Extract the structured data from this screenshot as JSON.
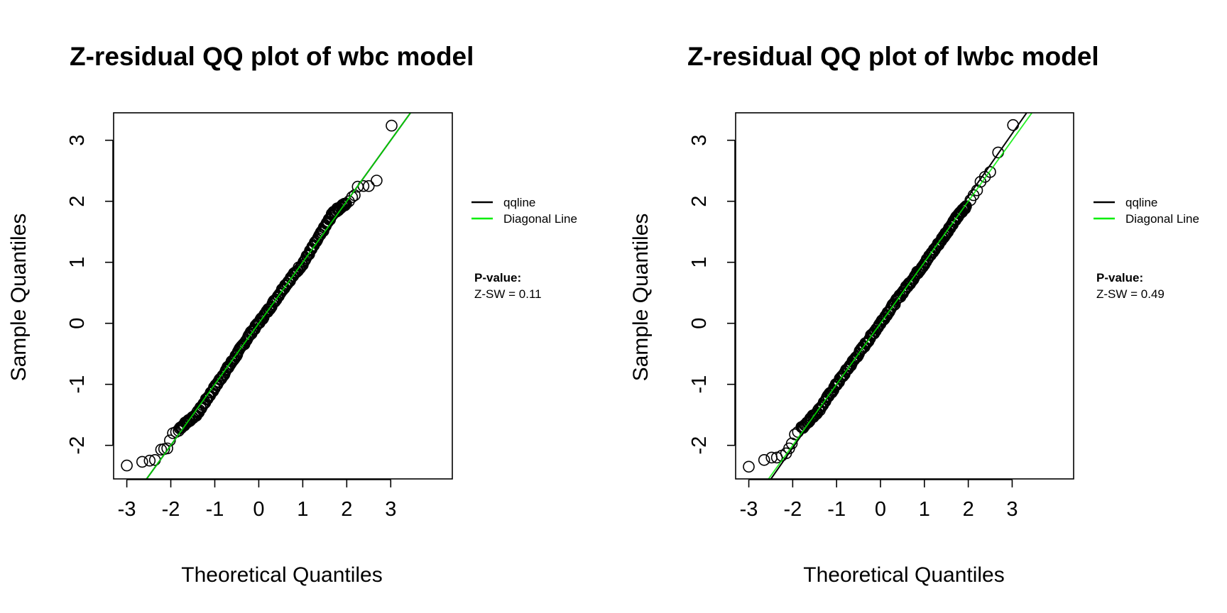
{
  "chart_data": [
    {
      "type": "scatter",
      "title": "Z-residual QQ plot of wbc model",
      "xlabel": "Theoretical Quantiles",
      "ylabel": "Sample Quantiles",
      "xlim": [
        -3.3,
        4.4
      ],
      "ylim": [
        -2.55,
        3.45
      ],
      "xticks": [
        "-3",
        "-2",
        "-1",
        "0",
        "1",
        "2",
        "3"
      ],
      "yticks": [
        "-2",
        "-1",
        "0",
        "1",
        "2",
        "3"
      ],
      "legend": {
        "placement": "right",
        "entries": [
          {
            "label": "qqline",
            "color": "#000000"
          },
          {
            "label": "Diagonal Line",
            "color": "#00ee00"
          }
        ]
      },
      "pvalue_label": "P-value:",
      "pvalue_text": "Z-SW = 0.11",
      "qqline": {
        "slope": 1.0,
        "intercept": 0.0
      },
      "diagonal": {
        "slope": 1.0,
        "intercept": 0.0
      },
      "points": [
        {
          "x": -3.0,
          "y": -2.33
        },
        {
          "x": -2.65,
          "y": -2.27
        },
        {
          "x": -2.48,
          "y": -2.25
        },
        {
          "x": -2.36,
          "y": -2.24
        },
        {
          "x": -2.22,
          "y": -2.07
        },
        {
          "x": -2.15,
          "y": -2.06
        },
        {
          "x": -2.08,
          "y": -2.05
        },
        {
          "x": -2.02,
          "y": -1.92
        },
        {
          "x": -1.95,
          "y": -1.8
        },
        {
          "x": -1.88,
          "y": -1.78
        },
        {
          "x": -1.82,
          "y": -1.76
        },
        {
          "x": 2.05,
          "y": 2.0
        },
        {
          "x": 2.12,
          "y": 2.07
        },
        {
          "x": 2.18,
          "y": 2.1
        },
        {
          "x": 2.25,
          "y": 2.24
        },
        {
          "x": 2.38,
          "y": 2.25
        },
        {
          "x": 2.5,
          "y": 2.25
        },
        {
          "x": 2.68,
          "y": 2.34
        },
        {
          "x": 3.02,
          "y": 3.24
        }
      ],
      "dense_band": [
        {
          "x": -1.8,
          "y": -1.72
        },
        {
          "x": -1.4,
          "y": -1.48
        },
        {
          "x": -1.0,
          "y": -1.05
        },
        {
          "x": -0.6,
          "y": -0.62
        },
        {
          "x": -0.2,
          "y": -0.18
        },
        {
          "x": 0.2,
          "y": 0.2
        },
        {
          "x": 0.6,
          "y": 0.62
        },
        {
          "x": 1.0,
          "y": 0.98
        },
        {
          "x": 1.4,
          "y": 1.45
        },
        {
          "x": 1.7,
          "y": 1.82
        },
        {
          "x": 2.0,
          "y": 1.97
        }
      ]
    },
    {
      "type": "scatter",
      "title": "Z-residual QQ plot of lwbc model",
      "xlabel": "Theoretical Quantiles",
      "ylabel": "Sample Quantiles",
      "xlim": [
        -3.3,
        4.4
      ],
      "ylim": [
        -2.55,
        3.45
      ],
      "xticks": [
        "-3",
        "-2",
        "-1",
        "0",
        "1",
        "2",
        "3"
      ],
      "yticks": [
        "-2",
        "-1",
        "0",
        "1",
        "2",
        "3"
      ],
      "legend": {
        "placement": "right",
        "entries": [
          {
            "label": "qqline",
            "color": "#000000"
          },
          {
            "label": "Diagonal Line",
            "color": "#00ee00"
          }
        ]
      },
      "pvalue_label": "P-value:",
      "pvalue_text": "Z-SW = 0.49",
      "qqline": {
        "slope": 1.03,
        "intercept": 0.02
      },
      "diagonal": {
        "slope": 1.0,
        "intercept": 0.0
      },
      "points": [
        {
          "x": -3.0,
          "y": -2.35
        },
        {
          "x": -2.65,
          "y": -2.24
        },
        {
          "x": -2.48,
          "y": -2.2
        },
        {
          "x": -2.36,
          "y": -2.2
        },
        {
          "x": -2.25,
          "y": -2.17
        },
        {
          "x": -2.15,
          "y": -2.13
        },
        {
          "x": -2.08,
          "y": -2.05
        },
        {
          "x": -2.02,
          "y": -1.97
        },
        {
          "x": -1.95,
          "y": -1.82
        },
        {
          "x": -1.88,
          "y": -1.78
        },
        {
          "x": 1.95,
          "y": 1.92
        },
        {
          "x": 2.05,
          "y": 2.02
        },
        {
          "x": 2.12,
          "y": 2.1
        },
        {
          "x": 2.2,
          "y": 2.18
        },
        {
          "x": 2.28,
          "y": 2.32
        },
        {
          "x": 2.38,
          "y": 2.4
        },
        {
          "x": 2.5,
          "y": 2.48
        },
        {
          "x": 2.68,
          "y": 2.8
        },
        {
          "x": 3.02,
          "y": 3.25
        }
      ],
      "dense_band": [
        {
          "x": -1.8,
          "y": -1.72
        },
        {
          "x": -1.4,
          "y": -1.42
        },
        {
          "x": -1.0,
          "y": -1.0
        },
        {
          "x": -0.6,
          "y": -0.6
        },
        {
          "x": -0.2,
          "y": -0.2
        },
        {
          "x": 0.2,
          "y": 0.21
        },
        {
          "x": 0.6,
          "y": 0.6
        },
        {
          "x": 1.0,
          "y": 0.98
        },
        {
          "x": 1.4,
          "y": 1.38
        },
        {
          "x": 1.7,
          "y": 1.7
        },
        {
          "x": 1.95,
          "y": 1.92
        }
      ]
    }
  ]
}
